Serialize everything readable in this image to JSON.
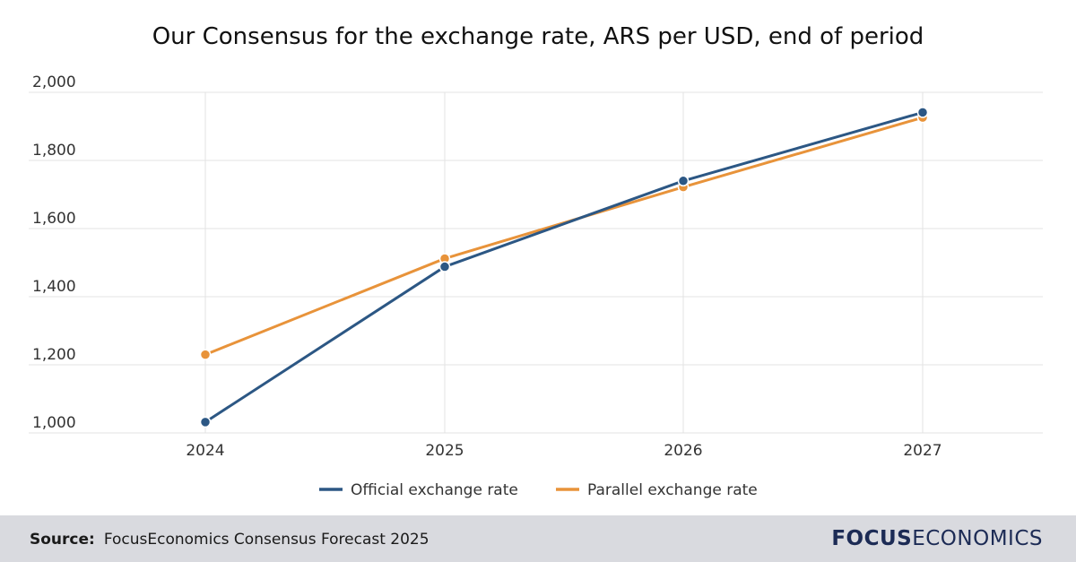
{
  "chart_data": {
    "type": "line",
    "title": "Our Consensus for the exchange rate, ARS per USD, end of period",
    "categories": [
      "2024",
      "2025",
      "2026",
      "2027"
    ],
    "ylim": [
      1000,
      2000
    ],
    "yticks": [
      1000,
      1200,
      1400,
      1600,
      1800,
      2000
    ],
    "ytick_labels": [
      "1,000",
      "1,200",
      "1,400",
      "1,600",
      "1,800",
      "2,000"
    ],
    "grid": true,
    "legend_position": "bottom-center",
    "series": [
      {
        "name": "Official exchange rate",
        "color": "#2c5784",
        "values": [
          1032,
          1488,
          1740,
          1941
        ]
      },
      {
        "name": "Parallel exchange rate",
        "color": "#e8933a",
        "values": [
          1230,
          1512,
          1722,
          1926
        ]
      }
    ]
  },
  "footer": {
    "source_label": "Source:",
    "source_text": "FocusEconomics Consensus Forecast 2025",
    "logo_bold": "FOCUS",
    "logo_light": "ECONOMICS"
  }
}
